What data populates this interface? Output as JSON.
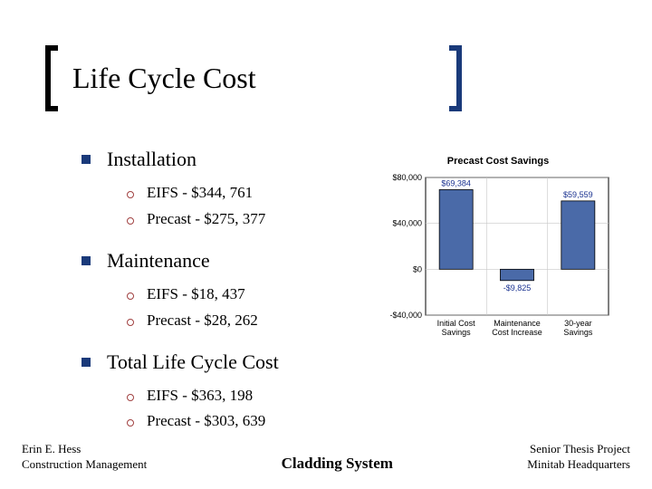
{
  "title": "Life Cycle Cost",
  "sections": [
    {
      "heading": "Installation",
      "items": [
        "EIFS - $344, 761",
        "Precast - $275, 377"
      ]
    },
    {
      "heading": "Maintenance",
      "items": [
        "EIFS - $18, 437",
        "Precast - $28, 262"
      ]
    },
    {
      "heading": "Total Life Cycle Cost",
      "items": [
        "EIFS - $363, 198",
        "Precast - $303, 639"
      ]
    }
  ],
  "chart": {
    "type": "bar",
    "title": "Precast Cost Savings",
    "categories": [
      "Initial Cost\nSavings",
      "Maintenance\nCost Increase",
      "30-year\nSavings"
    ],
    "values": [
      69384,
      -9825,
      59559
    ],
    "value_labels": [
      "$69,384",
      "-$9,825",
      "$59,559"
    ],
    "bar_color": "#4a6aa8",
    "bar_border": "#000000",
    "ylim": [
      -40000,
      80000
    ],
    "ytick_step": 40000,
    "ytick_labels": [
      "-$40,000",
      "$0",
      "$40,000",
      "$80,000"
    ],
    "background_color": "#ffffff",
    "grid_color": "#c8c8c8",
    "axis_font": "Arial",
    "axis_fontsize": 9,
    "title_fontsize": 11,
    "label_color": "#1a3290",
    "plot_border": "#000000"
  },
  "footer": {
    "left1": "Erin E. Hess",
    "left2": "Construction Management",
    "center": "Cladding System",
    "right1": "Senior Thesis Project",
    "right2": "Minitab Headquarters"
  },
  "colors": {
    "bullet_square": "#1a3a7a",
    "bullet_circle": "#a04040",
    "bracket_right": "#1a3a7a"
  }
}
